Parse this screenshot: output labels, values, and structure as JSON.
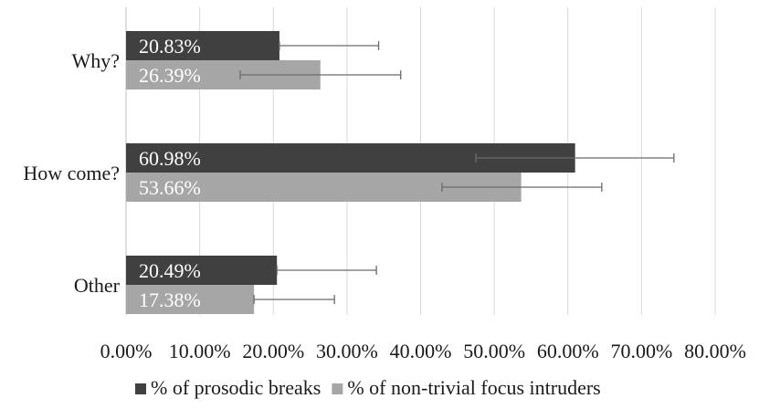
{
  "chart_data": {
    "type": "bar",
    "orientation": "horizontal",
    "categories": [
      "Why?",
      "How come?",
      "Other"
    ],
    "series": [
      {
        "name": "% of prosodic breaks",
        "color": "#404040",
        "values": [
          20.83,
          60.98,
          20.49
        ],
        "value_labels": [
          "20.83%",
          "60.98%",
          "20.49%"
        ],
        "error_low": [
          20.83,
          47.5,
          20.49
        ],
        "error_high": [
          34.3,
          74.4,
          34.0
        ]
      },
      {
        "name": "% of non-trivial focus intruders",
        "color": "#a6a6a6",
        "values": [
          26.39,
          53.66,
          17.38
        ],
        "value_labels": [
          "26.39%",
          "53.66%",
          "17.38%"
        ],
        "error_low": [
          15.5,
          42.9,
          17.38
        ],
        "error_high": [
          37.3,
          64.6,
          28.3
        ]
      }
    ],
    "xlim": [
      0,
      80
    ],
    "x_ticks": [
      0,
      10,
      20,
      30,
      40,
      50,
      60,
      70,
      80
    ],
    "x_tick_labels": [
      "0.00%",
      "10.00%",
      "20.00%",
      "30.00%",
      "40.00%",
      "50.00%",
      "60.00%",
      "70.00%",
      "80.00%"
    ],
    "grid": true,
    "legend": "bottom",
    "title": "",
    "xlabel": "",
    "ylabel": ""
  }
}
